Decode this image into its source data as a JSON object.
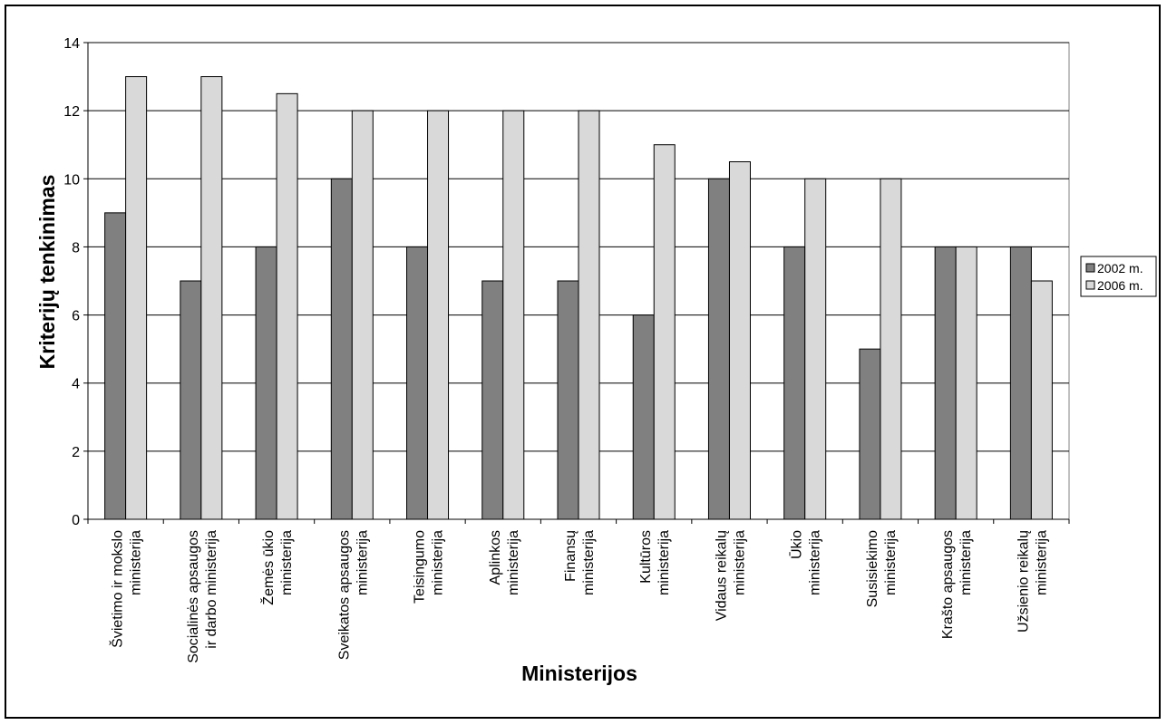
{
  "chart_data": {
    "type": "bar",
    "title": "",
    "xlabel": "Ministerijos",
    "ylabel": "Kriterijų tenkinimas",
    "ylim": [
      0,
      14
    ],
    "yticks": [
      0,
      2,
      4,
      6,
      8,
      10,
      12,
      14
    ],
    "grid": true,
    "legend_position": "right",
    "categories": [
      [
        "Švietimo ir mokslo",
        "ministerija"
      ],
      [
        "Socialinės apsaugos",
        "ir darbo ministerija"
      ],
      [
        "Žemės ūkio",
        "ministerija"
      ],
      [
        "Sveikatos apsaugos",
        "ministerija"
      ],
      [
        "Teisingumo",
        "ministerija"
      ],
      [
        "Aplinkos",
        "ministerija"
      ],
      [
        "Finansų",
        "ministerija"
      ],
      [
        "Kultūros",
        "ministerija"
      ],
      [
        "Vidaus reikalų",
        "ministerija"
      ],
      [
        "Ūkio",
        "ministerija"
      ],
      [
        "Susisiekimo",
        "ministerija"
      ],
      [
        "Krašto apsaugos",
        "ministerija"
      ],
      [
        "Užsienio reikalų",
        "ministerija"
      ]
    ],
    "series": [
      {
        "name": "2002 m.",
        "color": "#808080",
        "values": [
          9,
          7,
          8,
          10,
          8,
          7,
          7,
          6,
          10,
          8,
          5,
          8,
          8
        ]
      },
      {
        "name": "2006 m.",
        "color": "#d9d9d9",
        "values": [
          13,
          13,
          12.5,
          12,
          12,
          12,
          12,
          11,
          10.5,
          10,
          10,
          8,
          7
        ]
      }
    ]
  }
}
